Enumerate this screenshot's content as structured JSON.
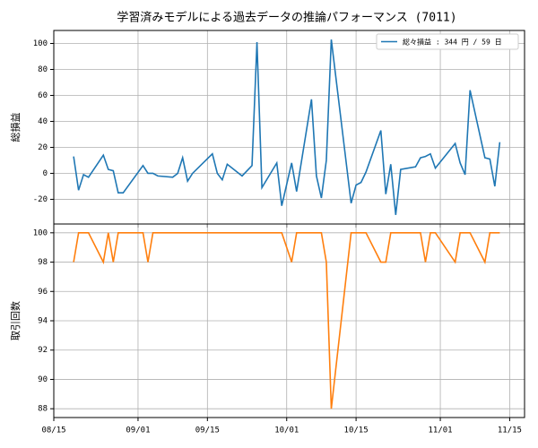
{
  "chart_data": [
    {
      "type": "line",
      "title": "学習済みモデルによる過去データの推論パフォーマンス (7011)",
      "ylabel": "総損益",
      "x": [
        "08/19",
        "08/20",
        "08/21",
        "08/22",
        "08/25",
        "08/26",
        "08/27",
        "08/28",
        "08/29",
        "09/02",
        "09/03",
        "09/04",
        "09/05",
        "09/08",
        "09/09",
        "09/10",
        "09/11",
        "09/12",
        "09/16",
        "09/17",
        "09/18",
        "09/19",
        "09/22",
        "09/24",
        "09/25",
        "09/26",
        "09/29",
        "09/30",
        "10/02",
        "10/03",
        "10/06",
        "10/07",
        "10/08",
        "10/09",
        "10/10",
        "10/14",
        "10/15",
        "10/16",
        "10/17",
        "10/20",
        "10/21",
        "10/22",
        "10/23",
        "10/24",
        "10/27",
        "10/28",
        "10/29",
        "10/30",
        "10/31",
        "11/04",
        "11/05",
        "11/06",
        "11/07",
        "11/10",
        "11/11",
        "11/12",
        "11/13"
      ],
      "series": [
        {
          "name": "総々損益 : 344 円 / 59 日",
          "color": "#1f77b4",
          "values": [
            13,
            -13,
            -1,
            -3,
            14,
            3,
            2,
            -15,
            -15,
            6,
            0,
            0,
            -2,
            -3,
            0,
            12,
            -6,
            0,
            15,
            0,
            -5,
            7,
            -2,
            6,
            101,
            -11,
            8,
            -25,
            8,
            -14,
            57,
            -2,
            -19,
            10,
            103,
            -23,
            -9,
            -7,
            1,
            33,
            -16,
            7,
            -32,
            3,
            5,
            12,
            13,
            15,
            4,
            23,
            8,
            -1,
            64,
            12,
            11,
            -10,
            24
          ]
        }
      ],
      "xlim": [
        "08/15",
        "11/18"
      ],
      "ylim": [
        -39,
        110
      ],
      "yticks": [
        -20,
        0,
        20,
        40,
        60,
        80,
        100
      ],
      "grid": true,
      "legend": "upper right"
    },
    {
      "type": "line",
      "ylabel": "取引回数",
      "x": [
        "08/19",
        "08/20",
        "08/21",
        "08/22",
        "08/25",
        "08/26",
        "08/27",
        "08/28",
        "08/29",
        "09/02",
        "09/03",
        "09/04",
        "09/05",
        "09/08",
        "09/09",
        "09/10",
        "09/11",
        "09/12",
        "09/16",
        "09/17",
        "09/18",
        "09/19",
        "09/22",
        "09/24",
        "09/25",
        "09/26",
        "09/29",
        "09/30",
        "10/02",
        "10/03",
        "10/06",
        "10/07",
        "10/08",
        "10/09",
        "10/10",
        "10/14",
        "10/15",
        "10/16",
        "10/17",
        "10/20",
        "10/21",
        "10/22",
        "10/23",
        "10/24",
        "10/27",
        "10/28",
        "10/29",
        "10/30",
        "10/31",
        "11/04",
        "11/05",
        "11/06",
        "11/07",
        "11/10",
        "11/11",
        "11/12",
        "11/13"
      ],
      "series": [
        {
          "color": "#ff7f0e",
          "values": [
            98,
            100,
            100,
            100,
            98,
            100,
            98,
            100,
            100,
            100,
            98,
            100,
            100,
            100,
            100,
            100,
            100,
            100,
            100,
            100,
            100,
            100,
            100,
            100,
            100,
            100,
            100,
            100,
            98,
            100,
            100,
            100,
            100,
            98,
            88,
            100,
            100,
            100,
            100,
            98,
            98,
            100,
            100,
            100,
            100,
            100,
            98,
            100,
            100,
            98,
            100,
            100,
            100,
            98,
            100,
            100,
            100
          ]
        }
      ],
      "xlim": [
        "08/15",
        "11/18"
      ],
      "xticks": [
        "08/15",
        "09/01",
        "09/15",
        "10/01",
        "10/15",
        "11/01",
        "11/15"
      ],
      "ylim": [
        87.4,
        100.6
      ],
      "yticks": [
        88,
        90,
        92,
        94,
        96,
        98,
        100
      ],
      "grid": true
    }
  ]
}
